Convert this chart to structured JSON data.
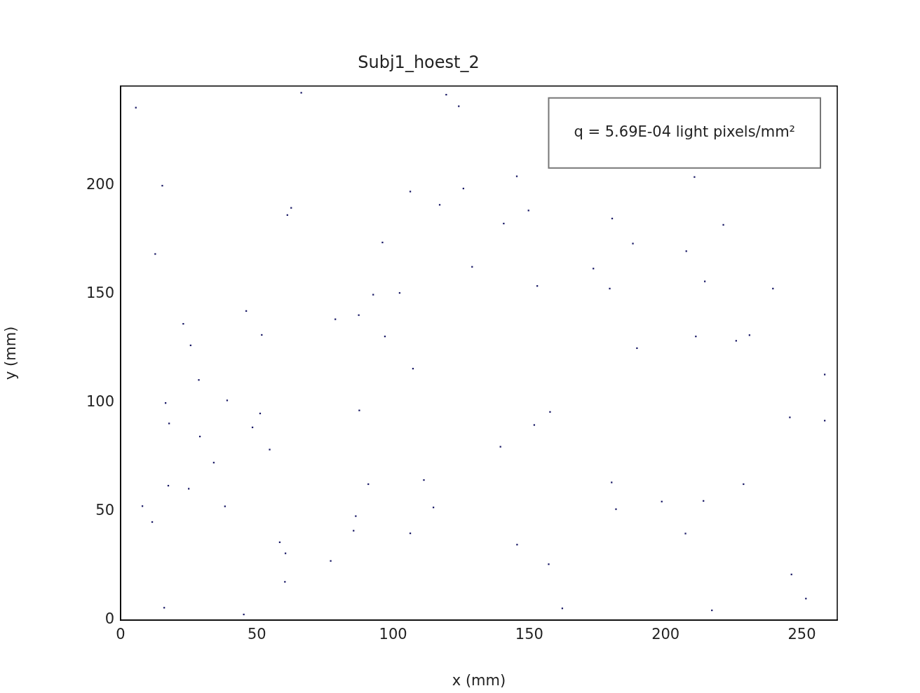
{
  "chart_data": {
    "type": "scatter",
    "title": "Subj1_hoest_2",
    "xlabel": "x (mm)",
    "ylabel": "y (mm)",
    "annotations": [
      "q = 5.69E-04 light pixels/mm²"
    ],
    "xlim": [
      0,
      263
    ],
    "ylim": [
      0,
      245.5
    ],
    "xticks": [
      0,
      50,
      100,
      150,
      200,
      250
    ],
    "yticks": [
      0,
      50,
      100,
      150,
      200
    ],
    "grid": false,
    "legend": false,
    "marker": "square",
    "series": [
      {
        "color": "#1a1a66",
        "x": [
          5.6,
          66.3,
          124.1,
          119.5,
          106.3,
          117.1,
          125.8,
          62.6,
          61.2,
          96.1,
          12.7,
          129.0,
          92.7,
          102.4,
          78.8,
          87.4,
          23.0,
          25.7,
          51.8,
          97.0,
          15.3,
          46.1,
          140.6,
          149.7,
          145.4,
          210.6,
          180.4,
          188.0,
          221.2,
          207.6,
          173.5,
          179.5,
          152.9,
          214.4,
          239.4,
          211.1,
          189.5,
          225.9,
          230.8,
          28.7,
          16.5,
          39.1,
          51.2,
          48.4,
          29.1,
          17.8,
          54.7,
          34.2,
          87.6,
          111.3,
          90.9,
          114.8,
          86.3,
          85.5,
          106.3,
          17.5,
          25.0,
          38.3,
          11.6,
          8.0,
          58.4,
          60.5,
          77.1,
          60.3,
          45.2,
          16.0,
          107.3,
          258.4,
          258.4,
          245.6,
          151.8,
          157.6,
          139.4,
          228.6,
          180.2,
          198.6,
          213.9,
          181.8,
          207.3,
          145.5,
          157.1,
          251.5,
          162.1,
          217.0,
          246.2
        ],
        "values": [
          235.6,
          242.4,
          236.2,
          241.5,
          197.0,
          190.9,
          198.4,
          189.5,
          186.2,
          173.6,
          168.3,
          162.4,
          149.6,
          150.4,
          138.3,
          140.2,
          136.2,
          126.3,
          131.1,
          130.4,
          199.7,
          142.1,
          182.3,
          188.3,
          204.0,
          203.7,
          184.6,
          173.1,
          181.7,
          169.6,
          161.6,
          152.4,
          153.6,
          155.7,
          152.4,
          130.4,
          125.0,
          128.4,
          131.0,
          110.4,
          99.8,
          101.0,
          95.0,
          88.6,
          84.4,
          90.4,
          78.4,
          72.4,
          96.4,
          64.4,
          62.5,
          51.8,
          47.8,
          41.1,
          39.9,
          61.8,
          60.4,
          52.3,
          45.1,
          52.4,
          35.8,
          30.7,
          27.2,
          17.6,
          2.6,
          5.7,
          115.6,
          112.9,
          91.7,
          93.2,
          89.7,
          95.7,
          79.7,
          62.5,
          63.3,
          54.5,
          54.8,
          51.0,
          39.8,
          34.7,
          25.7,
          9.9,
          5.4,
          4.5,
          21.0
        ]
      }
    ]
  }
}
